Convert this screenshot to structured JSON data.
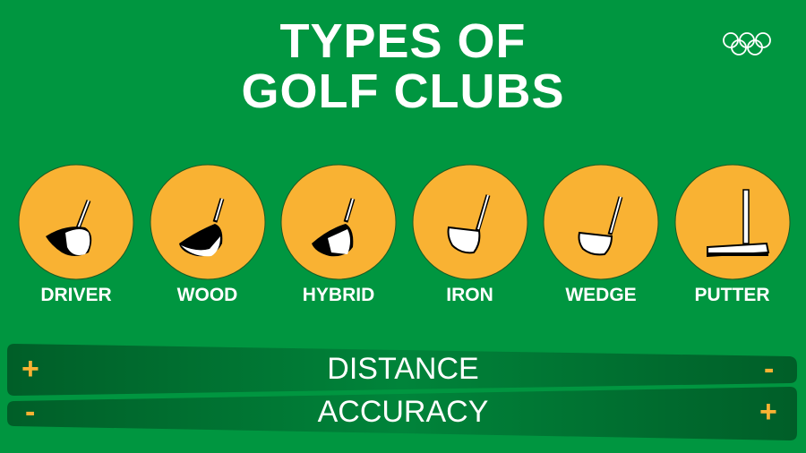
{
  "title_lines": [
    "TYPES OF",
    "GOLF CLUBS"
  ],
  "logo": "olympic-rings",
  "clubs": [
    {
      "label": "DRIVER",
      "icon": "driver-icon"
    },
    {
      "label": "WOOD",
      "icon": "wood-icon"
    },
    {
      "label": "HYBRID",
      "icon": "hybrid-icon"
    },
    {
      "label": "IRON",
      "icon": "iron-icon"
    },
    {
      "label": "WEDGE",
      "icon": "wedge-icon"
    },
    {
      "label": "PUTTER",
      "icon": "putter-icon"
    }
  ],
  "scales": [
    {
      "label": "DISTANCE",
      "left": "+",
      "right": "-"
    },
    {
      "label": "ACCURACY",
      "left": "-",
      "right": "+"
    }
  ],
  "colors": {
    "background": "#009640",
    "circle": "#f9b233",
    "bar": "#006b2d",
    "sign": "#f9b233"
  }
}
